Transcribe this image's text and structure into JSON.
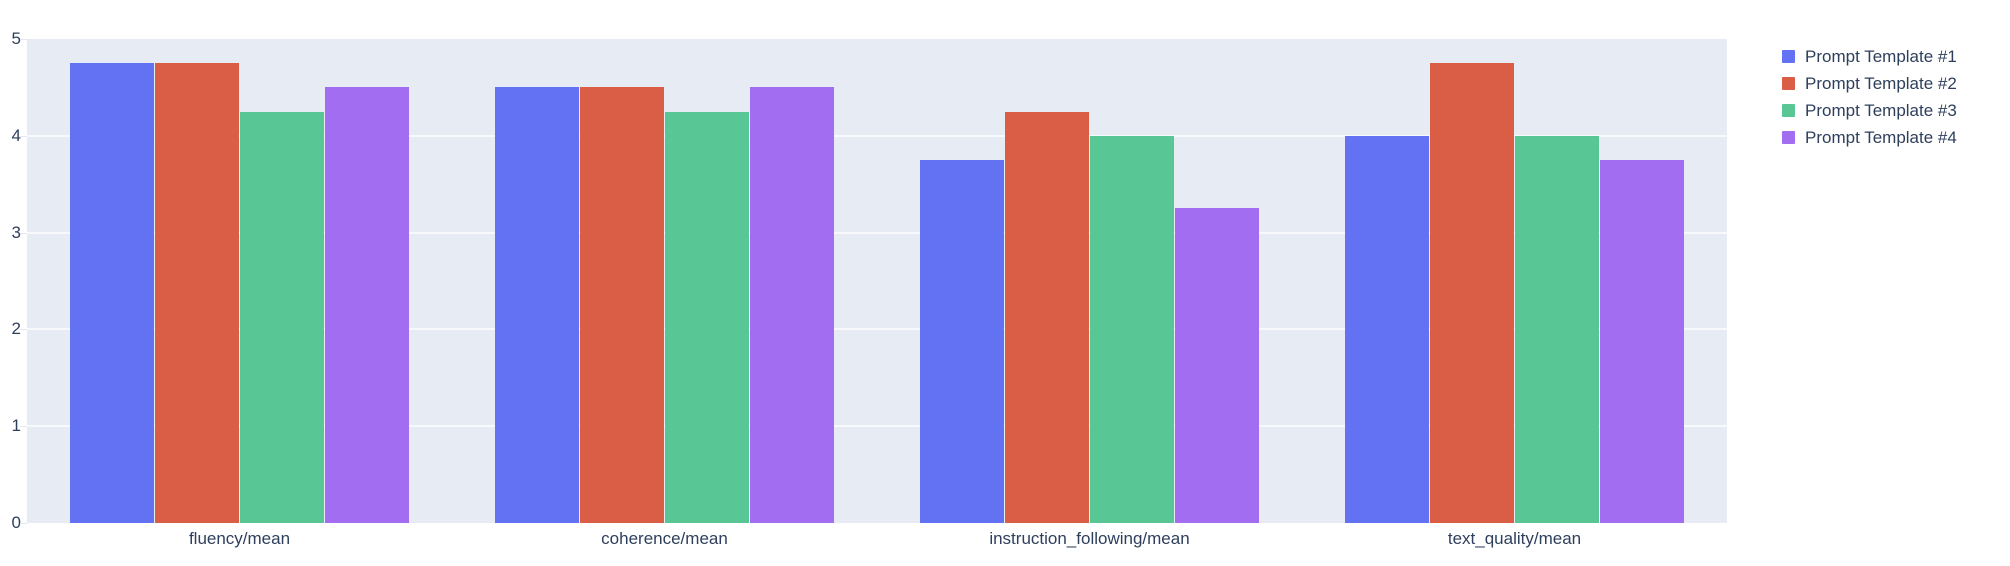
{
  "chart_data": {
    "type": "bar",
    "mode": "grouped",
    "title": "",
    "xlabel": "",
    "ylabel": "",
    "categories": [
      "fluency/mean",
      "coherence/mean",
      "instruction_following/mean",
      "text_quality/mean"
    ],
    "series": [
      {
        "name": "Prompt Template #1",
        "color": "#6372f2",
        "values": [
          4.75,
          4.5,
          3.75,
          4.0
        ]
      },
      {
        "name": "Prompt Template #2",
        "color": "#da5e46",
        "values": [
          4.75,
          4.5,
          4.25,
          4.75
        ]
      },
      {
        "name": "Prompt Template #3",
        "color": "#59c795",
        "values": [
          4.25,
          4.25,
          4.0,
          4.0
        ]
      },
      {
        "name": "Prompt Template #4",
        "color": "#a36df2",
        "values": [
          4.5,
          4.5,
          3.25,
          3.75
        ]
      }
    ],
    "ylim": [
      0,
      5
    ],
    "yticks": [
      0,
      1,
      2,
      3,
      4,
      5
    ],
    "grid": true,
    "legend_position": "top-right",
    "colors": {
      "plot_background": "#e7ebf4",
      "gridline": "#f7f9fc",
      "tick_mark": "#e2e7f0",
      "text": "#2e3f5c",
      "figure_background": "#ffffff"
    }
  }
}
